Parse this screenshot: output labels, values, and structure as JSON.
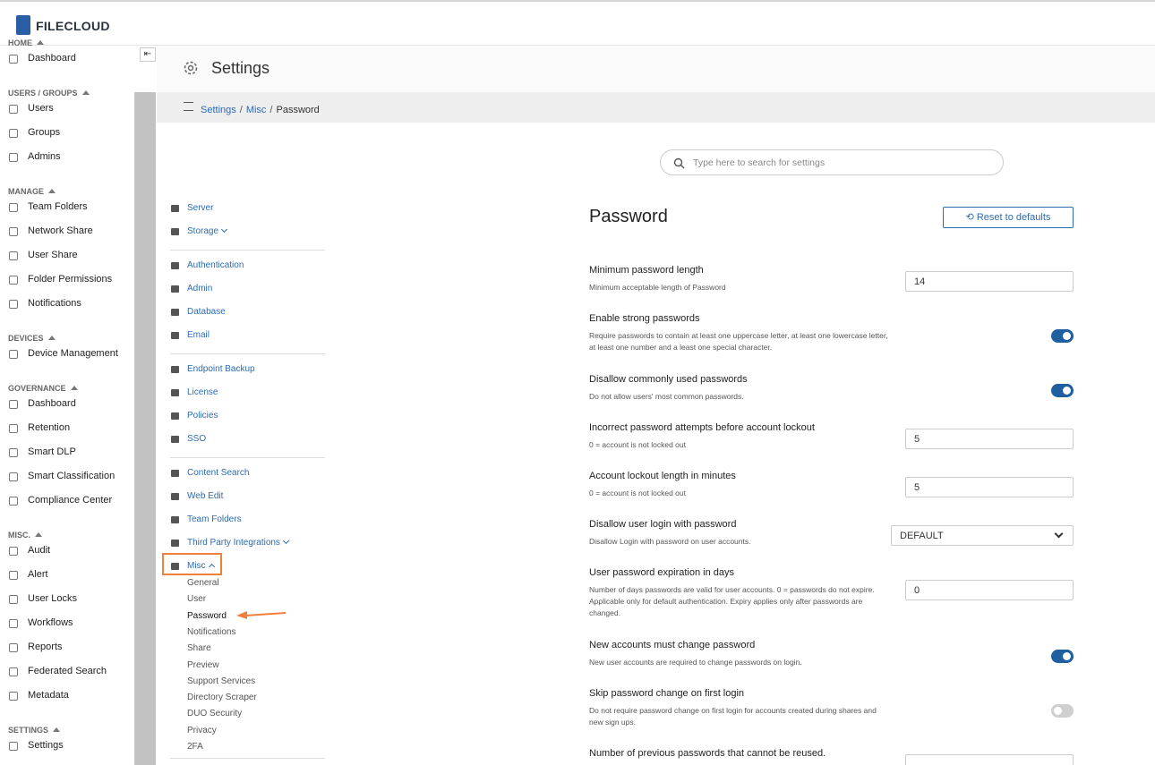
{
  "brand": "FILECLOUD",
  "sidebar": {
    "sections": [
      {
        "title": "HOME",
        "items": [
          "Dashboard"
        ]
      },
      {
        "title": "USERS / GROUPS",
        "items": [
          "Users",
          "Groups",
          "Admins"
        ]
      },
      {
        "title": "MANAGE",
        "items": [
          "Team Folders",
          "Network Share",
          "User Share",
          "Folder Permissions",
          "Notifications"
        ]
      },
      {
        "title": "DEVICES",
        "items": [
          "Device Management"
        ]
      },
      {
        "title": "GOVERNANCE",
        "items": [
          "Dashboard",
          "Retention",
          "Smart DLP",
          "Smart Classification",
          "Compliance Center"
        ]
      },
      {
        "title": "MISC.",
        "items": [
          "Audit",
          "Alert",
          "User Locks",
          "Workflows",
          "Reports",
          "Federated Search",
          "Metadata"
        ]
      },
      {
        "title": "SETTINGS",
        "items": [
          "Settings"
        ]
      }
    ]
  },
  "header": {
    "title": "Settings"
  },
  "breadcrumb": {
    "items": [
      "Settings",
      "Misc",
      "Password"
    ],
    "separator": "/"
  },
  "search": {
    "placeholder": "Type here to search for settings"
  },
  "settings_nav": {
    "groups": [
      {
        "items": [
          {
            "label": "Server"
          },
          {
            "label": "Storage",
            "expandable": true
          }
        ]
      },
      {
        "items": [
          {
            "label": "Authentication"
          },
          {
            "label": "Admin"
          },
          {
            "label": "Database"
          },
          {
            "label": "Email"
          }
        ]
      },
      {
        "items": [
          {
            "label": "Endpoint Backup"
          },
          {
            "label": "License"
          },
          {
            "label": "Policies"
          },
          {
            "label": "SSO"
          }
        ]
      },
      {
        "items": [
          {
            "label": "Content Search"
          },
          {
            "label": "Web Edit"
          },
          {
            "label": "Team Folders"
          },
          {
            "label": "Third Party Integrations",
            "expandable": true
          },
          {
            "label": "Misc",
            "expanded": true,
            "selected": true,
            "children": [
              "General",
              "User",
              "Password",
              "Notifications",
              "Share",
              "Preview",
              "Support Services",
              "Directory Scraper",
              "DUO Security",
              "Privacy",
              "2FA"
            ]
          }
        ]
      }
    ]
  },
  "panel": {
    "title": "Password",
    "reset_button": "Reset to defaults",
    "settings": [
      {
        "label": "Minimum password length",
        "description": "Minimum acceptable length of Password",
        "control": {
          "type": "input",
          "value": 14
        }
      },
      {
        "label": "Enable strong passwords",
        "description": "Require passwords to contain at least one uppercase letter, at least one lowercase letter, at least one number and a least one special character.",
        "control": {
          "type": "toggle",
          "on": true
        }
      },
      {
        "label": "Disallow commonly used passwords",
        "description": "Do not allow users' most common passwords.",
        "control": {
          "type": "toggle",
          "on": true
        }
      },
      {
        "label": "Incorrect password attempts before account lockout",
        "description": "0 = account is not locked out",
        "control": {
          "type": "input",
          "value": 5
        }
      },
      {
        "label": "Account lockout length in minutes",
        "description": "0 = account is not locked out",
        "control": {
          "type": "input",
          "value": 5
        }
      },
      {
        "label": "Disallow user login with password",
        "description": "Disallow Login with password on user accounts.",
        "control": {
          "type": "select",
          "value": "DEFAULT"
        }
      },
      {
        "label": "User password expiration in days",
        "description": "Number of days passwords are valid for user accounts. 0 = passwords do not expire. Applicable only for default authentication. Expiry applies only after passwords are changed.",
        "control": {
          "type": "input",
          "value": 0
        }
      },
      {
        "label": "New accounts must change password",
        "description": "New user accounts are required to change passwords on login.",
        "control": {
          "type": "toggle",
          "on": true
        }
      },
      {
        "label": "Skip password change on first login",
        "description": "Do not require password change on first login for accounts created during shares and new sign ups.",
        "control": {
          "type": "toggle",
          "on": false
        }
      },
      {
        "label": "Number of previous passwords that cannot be reused.",
        "control": {
          "type": "input"
        }
      }
    ]
  }
}
